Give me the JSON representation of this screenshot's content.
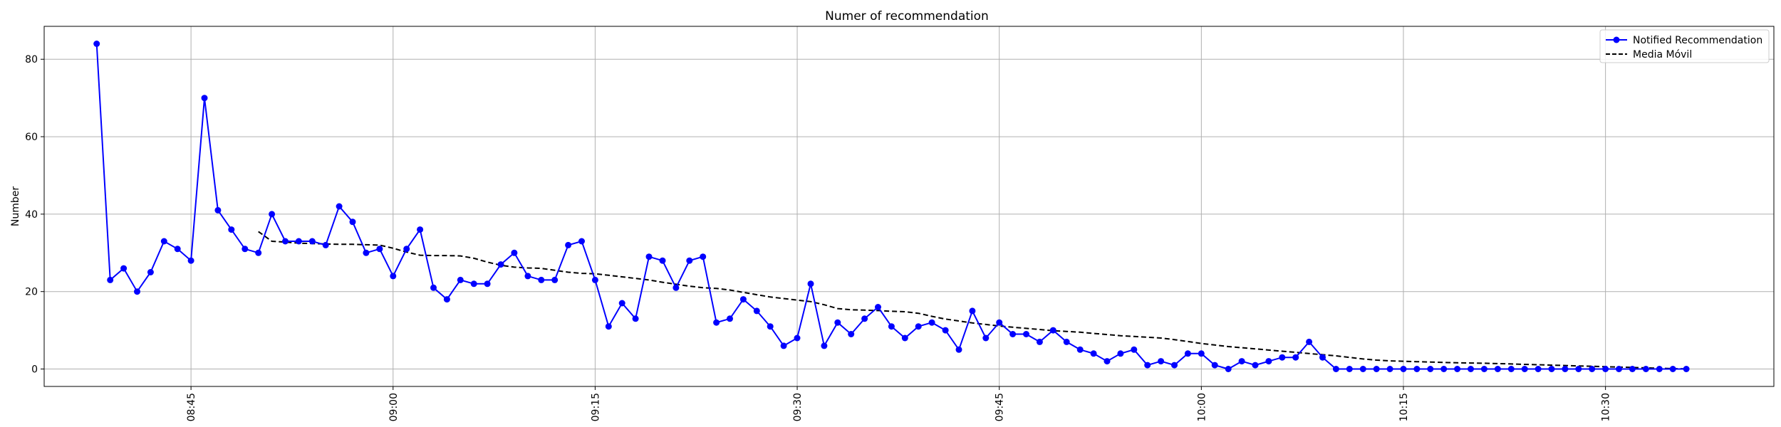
{
  "chart_data": {
    "type": "line",
    "title": "Numer of recommendation",
    "xlabel": "",
    "ylabel": "Number",
    "ylim": [
      -4.5,
      88.5
    ],
    "xlim_minutes": [
      -3.9,
      124.5
    ],
    "yticks": [
      0,
      20,
      40,
      60,
      80
    ],
    "xticks": [
      {
        "label": "08:45",
        "minute": 7
      },
      {
        "label": "09:00",
        "minute": 22
      },
      {
        "label": "09:15",
        "minute": 37
      },
      {
        "label": "09:30",
        "minute": 52
      },
      {
        "label": "09:45",
        "minute": 67
      },
      {
        "label": "10:00",
        "minute": 82
      },
      {
        "label": "10:15",
        "minute": 97
      },
      {
        "label": "10:30",
        "minute": 112
      }
    ],
    "grid": true,
    "legend_position": "top-right",
    "start_time": "08:38",
    "interval_minutes": 1,
    "series": [
      {
        "name": "Notified Recommendation",
        "color": "#0000ff",
        "style": "solid-marker",
        "values": [
          84,
          23,
          26,
          20,
          25,
          33,
          31,
          28,
          70,
          41,
          36,
          31,
          30,
          40,
          33,
          33,
          33,
          32,
          42,
          38,
          30,
          31,
          24,
          31,
          36,
          21,
          18,
          23,
          22,
          22,
          27,
          30,
          24,
          23,
          23,
          32,
          33,
          23,
          11,
          17,
          13,
          29,
          28,
          21,
          28,
          29,
          12,
          13,
          18,
          15,
          11,
          6,
          8,
          22,
          6,
          12,
          9,
          13,
          16,
          11,
          8,
          11,
          12,
          10,
          5,
          15,
          8,
          12,
          9,
          9,
          7,
          10,
          7,
          5,
          4,
          2,
          4,
          5,
          1,
          2,
          1,
          4,
          4,
          1,
          0,
          2,
          1,
          2,
          3,
          3,
          7,
          3,
          0,
          0,
          0,
          0,
          0,
          0,
          0,
          0,
          0,
          0,
          0,
          0,
          0,
          0,
          0,
          0,
          0,
          0,
          0,
          0,
          0,
          0,
          0,
          0,
          0,
          0,
          0
        ]
      },
      {
        "name": "Media Móvil",
        "color": "#000000",
        "style": "dashed",
        "start_minute": 12,
        "values": [
          35.5,
          33.0,
          32.8,
          32.5,
          32.4,
          32.3,
          32.2,
          32.2,
          32.1,
          32.0,
          31.2,
          30.2,
          29.4,
          29.3,
          29.3,
          29.2,
          28.6,
          27.6,
          26.8,
          26.3,
          26.1,
          26.0,
          25.5,
          25.0,
          24.7,
          24.6,
          24.2,
          23.8,
          23.4,
          23.0,
          22.4,
          21.9,
          21.4,
          21.0,
          20.8,
          20.4,
          19.8,
          19.2,
          18.6,
          18.2,
          17.8,
          17.4,
          16.6,
          15.6,
          15.3,
          15.2,
          15.1,
          14.9,
          14.8,
          14.4,
          13.6,
          12.9,
          12.4,
          11.9,
          11.5,
          11.1,
          10.8,
          10.5,
          10.2,
          9.9,
          9.7,
          9.5,
          9.2,
          8.9,
          8.6,
          8.4,
          8.2,
          8.0,
          7.6,
          7.1,
          6.6,
          6.2,
          5.8,
          5.5,
          5.2,
          4.9,
          4.6,
          4.3,
          4.0,
          3.7,
          3.4,
          3.0,
          2.6,
          2.3,
          2.1,
          2.0,
          1.9,
          1.8,
          1.7,
          1.6,
          1.55,
          1.5,
          1.4,
          1.3,
          1.2,
          1.1,
          1.0,
          0.9,
          0.8,
          0.7,
          0.6,
          0.5,
          0.4,
          0.3,
          0.2,
          0.1,
          0.05
        ]
      }
    ]
  }
}
